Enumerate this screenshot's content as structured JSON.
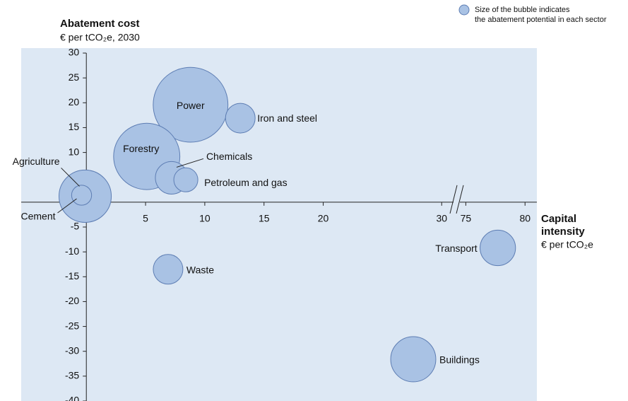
{
  "chart_data": {
    "type": "bubble",
    "title": "Abatement cost",
    "subtitle": "€ per tCO₂e, 2030",
    "x_label": [
      "Capital",
      "intensity",
      "€ per tCO₂e"
    ],
    "legend": [
      "Size of the bubble indicates",
      "the abatement potential in each sector"
    ],
    "xlim": [
      -5.5,
      81
    ],
    "xbreak": [
      31,
      74.5
    ],
    "xticks": [
      5,
      10,
      15,
      20,
      30,
      75,
      80
    ],
    "ylim": [
      -40,
      31
    ],
    "yticks": [
      30,
      25,
      20,
      15,
      10,
      5,
      -5,
      -10,
      -15,
      -20,
      -25,
      -30,
      -35,
      -40
    ],
    "color": "#a9c2e4",
    "edge_color": "#5d7db3",
    "background": "#dde8f4",
    "points": [
      {
        "label": "Power",
        "x": 8.8,
        "y": 19.6,
        "size": 28
      },
      {
        "label": "Iron and steel",
        "x": 13,
        "y": 16.9,
        "size": 4.4
      },
      {
        "label": "Forestry",
        "x": 5.1,
        "y": 9.2,
        "size": 22
      },
      {
        "label": "Chemicals",
        "x": 7.2,
        "y": 4.9,
        "size": 5.3
      },
      {
        "label": "Petroleum and gas",
        "x": 8.4,
        "y": 4.5,
        "size": 2.9
      },
      {
        "label": "Agriculture",
        "x": -0.1,
        "y": 1.2,
        "size": 13.7
      },
      {
        "label": "Cement",
        "x": -0.4,
        "y": 1.4,
        "size": 2
      },
      {
        "label": "Waste",
        "x": 6.9,
        "y": -13.5,
        "size": 4.4
      },
      {
        "label": "Transport",
        "x": 77.7,
        "y": -9.2,
        "size": 6.3
      },
      {
        "label": "Buildings",
        "x": 27.6,
        "y": -31.6,
        "size": 10.2
      }
    ]
  }
}
